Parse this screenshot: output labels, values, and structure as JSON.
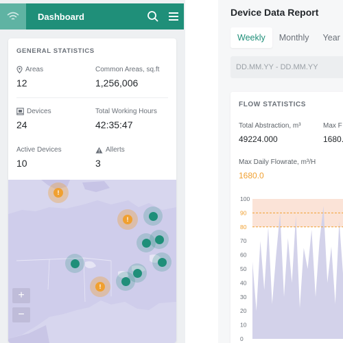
{
  "header": {
    "title": "Dashboard"
  },
  "general": {
    "title": "GENERAL STATISTICS",
    "stats": [
      {
        "label": "Areas",
        "value": "12"
      },
      {
        "label": "Common Areas, sq.ft",
        "value": "1,256,006"
      },
      {
        "label": "Devices",
        "value": "24"
      },
      {
        "label": "Total Working Hours",
        "value": "42:35:47"
      },
      {
        "label": "Active Devices",
        "value": "10"
      },
      {
        "label": "Allerts",
        "value": "3"
      }
    ]
  },
  "map": {
    "zoom_in": "+",
    "zoom_out": "−",
    "markers": [
      {
        "type": "alert",
        "symbol": "!"
      },
      {
        "type": "alert",
        "symbol": "!"
      },
      {
        "type": "active"
      },
      {
        "type": "active"
      },
      {
        "type": "active"
      },
      {
        "type": "active"
      },
      {
        "type": "active"
      },
      {
        "type": "alert",
        "symbol": "!"
      },
      {
        "type": "active"
      },
      {
        "type": "active"
      }
    ]
  },
  "report": {
    "title": "Device Data Report",
    "tabs": [
      "Weekly",
      "Monthly",
      "Year"
    ],
    "active_tab": "Weekly",
    "date_placeholder": "DD.MM.YY - DD.MM.YY"
  },
  "flow": {
    "title": "FLOW STATISTICS",
    "total_abstraction_label": "Total Abstraction, m³",
    "total_abstraction_value": "49224.000",
    "max_flow_label": "Max F",
    "max_flow_value": "1680.",
    "max_daily_label": "Max Daily Flowrate, m³/H",
    "max_daily_value": "1680.0"
  },
  "chart_data": {
    "type": "area",
    "y_ticks": [
      "100",
      "90",
      "80",
      "70",
      "60",
      "50",
      "40",
      "30",
      "20",
      "10",
      "0"
    ],
    "ylim": [
      0,
      100
    ],
    "threshold_lines": [
      90,
      80
    ],
    "values": [
      55,
      20,
      70,
      35,
      80,
      25,
      60,
      90,
      30,
      72,
      40,
      88,
      22,
      65,
      50,
      78,
      30,
      70,
      95,
      40,
      66,
      25,
      84,
      45,
      60
    ]
  },
  "colors": {
    "brand": "#1f8f79",
    "alert": "#f0a030",
    "active": "#1f8f79",
    "map_land": "#d7d6ee",
    "chart_fill": "#d3d2ea",
    "threshold_band": "#fbe3d7"
  }
}
